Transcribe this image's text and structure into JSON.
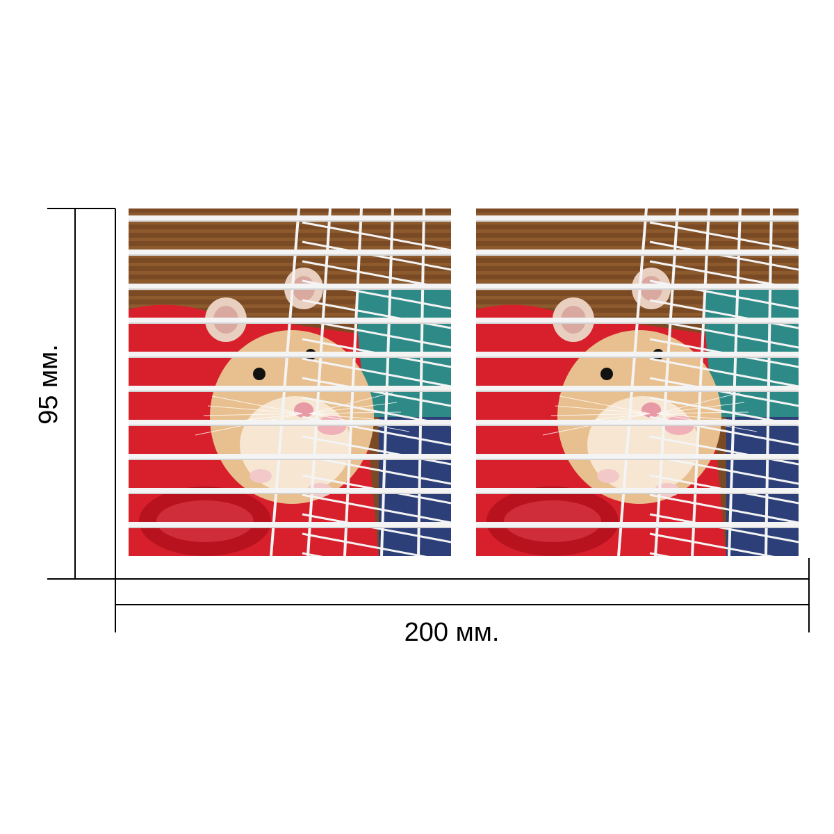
{
  "dimensions": {
    "height_label": "95 мм.",
    "width_label": "200 мм."
  },
  "panels": [
    {
      "icon": "hamster-in-cage-photo"
    },
    {
      "icon": "hamster-in-cage-photo"
    }
  ],
  "colors": {
    "dimension_line": "#000000",
    "cage_bars": "#f4f4f4",
    "cage_floor": "#d8202c",
    "hamster_fur": "#e8bf8e",
    "background_wood": "#7a4a24"
  }
}
